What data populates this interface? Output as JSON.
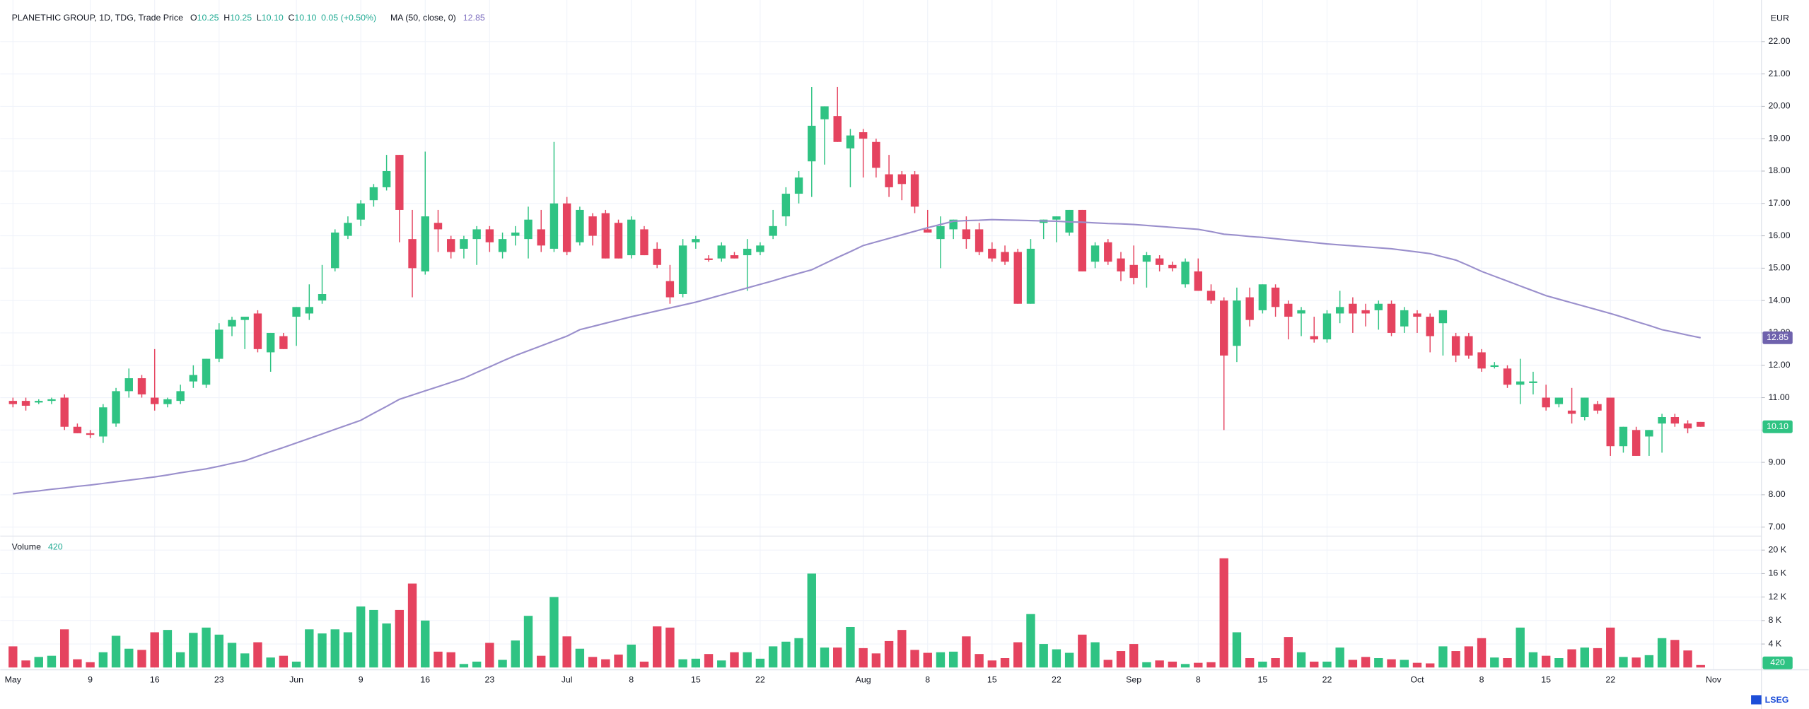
{
  "chart_data": {
    "type": "candlestick",
    "title": "PLANETHIC GROUP, 1D, TDG, Trade Price",
    "legend": {
      "items": [
        {
          "key": "O",
          "value": "10.25"
        },
        {
          "key": "H",
          "value": "10.25"
        },
        {
          "key": "L",
          "value": "10.10"
        },
        {
          "key": "C",
          "value": "10.10"
        }
      ],
      "change": "0.05 (+0.50%)"
    },
    "currency": "EUR",
    "brand": "LSEG",
    "up_color": "#2fc383",
    "down_color": "#e5435f",
    "grid": true,
    "categories": [
      "May",
      null,
      null,
      null,
      null,
      null,
      "9",
      null,
      null,
      null,
      null,
      "16",
      null,
      null,
      null,
      null,
      "23",
      null,
      null,
      null,
      null,
      null,
      "Jun",
      null,
      null,
      null,
      null,
      "9",
      null,
      null,
      null,
      null,
      "16",
      null,
      null,
      null,
      null,
      "23",
      null,
      null,
      null,
      null,
      null,
      "Jul",
      null,
      null,
      null,
      null,
      "8",
      null,
      null,
      null,
      null,
      "15",
      null,
      null,
      null,
      null,
      "22",
      null,
      null,
      null,
      null,
      null,
      null,
      null,
      "Aug",
      null,
      null,
      null,
      null,
      "8",
      null,
      null,
      null,
      null,
      "15",
      null,
      null,
      null,
      null,
      "22",
      null,
      null,
      null,
      null,
      null,
      "Sep",
      null,
      null,
      null,
      null,
      "8",
      null,
      null,
      null,
      null,
      "15",
      null,
      null,
      null,
      null,
      "22",
      null,
      null,
      null,
      null,
      null,
      null,
      "Oct",
      null,
      null,
      null,
      null,
      "8",
      null,
      null,
      null,
      null,
      "15",
      null,
      null,
      null,
      null,
      "22",
      null,
      null,
      null,
      null,
      null,
      null,
      null,
      "Nov"
    ],
    "open": [
      10.9,
      10.9,
      10.85,
      10.9,
      11.0,
      10.1,
      9.9,
      9.8,
      10.2,
      11.2,
      11.6,
      11.0,
      10.8,
      10.9,
      11.5,
      11.4,
      12.2,
      13.2,
      13.4,
      13.6,
      12.4,
      12.9,
      13.5,
      13.6,
      14.0,
      15.0,
      16.0,
      16.5,
      17.1,
      17.5,
      18.5,
      15.9,
      14.9,
      16.4,
      15.9,
      15.6,
      15.9,
      16.2,
      15.5,
      16.0,
      15.9,
      16.2,
      15.6,
      17.0,
      15.8,
      16.6,
      16.7,
      16.4,
      15.4,
      16.2,
      15.6,
      14.6,
      14.2,
      15.8,
      15.3,
      15.3,
      15.4,
      15.4,
      15.5,
      16.0,
      16.6,
      17.3,
      18.3,
      19.6,
      19.7,
      18.7,
      19.2,
      18.9,
      17.9,
      17.9,
      17.9,
      16.2,
      15.9,
      16.2,
      16.2,
      16.2,
      15.6,
      15.5,
      15.5,
      13.9,
      16.4,
      16.5,
      16.1,
      16.8,
      15.2,
      15.8,
      15.3,
      15.1,
      15.2,
      15.3,
      15.1,
      14.5,
      14.9,
      14.3,
      14.0,
      12.6,
      14.1,
      13.7,
      14.4,
      13.9,
      13.6,
      12.9,
      12.8,
      13.6,
      13.9,
      13.7,
      13.7,
      13.9,
      13.2,
      13.6,
      13.5,
      13.3,
      12.9,
      12.9,
      12.4,
      11.95,
      11.9,
      11.4,
      11.45,
      11.0,
      10.8,
      10.6,
      10.4,
      10.8,
      11.0,
      9.5,
      10.0,
      9.8,
      10.2,
      10.4,
      10.2,
      10.25,
      null
    ],
    "high": [
      11.0,
      11.0,
      10.95,
      11.0,
      11.1,
      10.2,
      10.0,
      10.8,
      11.3,
      11.9,
      11.7,
      12.5,
      11.0,
      11.4,
      12.0,
      12.2,
      13.3,
      13.5,
      13.5,
      13.7,
      13.0,
      13.0,
      13.8,
      14.5,
      15.1,
      16.2,
      16.6,
      17.1,
      17.6,
      18.5,
      18.5,
      16.8,
      18.6,
      16.8,
      16.0,
      16.0,
      16.3,
      16.3,
      16.1,
      16.3,
      16.9,
      16.8,
      18.9,
      17.2,
      16.9,
      16.7,
      16.8,
      16.5,
      16.6,
      16.3,
      15.8,
      15.1,
      15.9,
      16.0,
      15.4,
      15.8,
      15.5,
      15.9,
      15.8,
      16.8,
      17.5,
      18.0,
      20.6,
      20.0,
      20.6,
      19.3,
      19.3,
      19.0,
      18.5,
      18.0,
      18.0,
      16.8,
      16.6,
      16.5,
      16.6,
      16.4,
      15.8,
      15.7,
      15.6,
      15.9,
      16.5,
      16.6,
      16.8,
      16.8,
      15.8,
      15.9,
      15.5,
      15.7,
      15.5,
      15.4,
      15.2,
      15.3,
      15.3,
      14.5,
      14.1,
      14.4,
      14.4,
      14.5,
      14.5,
      14.0,
      13.8,
      13.5,
      13.7,
      14.3,
      14.1,
      13.9,
      14.0,
      14.0,
      13.8,
      13.7,
      13.6,
      13.7,
      13.0,
      13.0,
      12.5,
      12.1,
      12.0,
      12.2,
      11.8,
      11.4,
      11.0,
      11.3,
      11.0,
      10.9,
      11.0,
      10.1,
      10.1,
      10.0,
      10.5,
      10.5,
      10.3,
      10.25,
      null
    ],
    "low": [
      10.7,
      10.6,
      10.8,
      10.8,
      10.0,
      9.9,
      9.75,
      9.6,
      10.1,
      11.0,
      11.0,
      10.6,
      10.7,
      10.8,
      11.3,
      11.3,
      12.1,
      12.9,
      12.5,
      12.4,
      11.8,
      12.5,
      12.6,
      13.4,
      13.9,
      14.9,
      15.9,
      16.3,
      16.9,
      17.4,
      15.8,
      14.1,
      14.8,
      15.5,
      15.3,
      15.3,
      15.1,
      15.5,
      15.3,
      15.7,
      15.3,
      15.5,
      15.5,
      15.4,
      15.7,
      15.7,
      15.3,
      15.3,
      15.3,
      15.4,
      15.0,
      13.9,
      14.1,
      15.6,
      15.2,
      15.2,
      15.3,
      14.3,
      15.4,
      15.9,
      16.3,
      17.0,
      17.2,
      18.2,
      18.9,
      17.5,
      17.8,
      17.8,
      17.2,
      17.1,
      16.7,
      16.1,
      15.0,
      15.9,
      15.6,
      15.4,
      15.2,
      15.1,
      13.9,
      13.9,
      15.9,
      15.8,
      16.0,
      14.9,
      15.0,
      15.1,
      14.6,
      14.5,
      14.4,
      14.9,
      14.9,
      14.4,
      14.3,
      13.9,
      10.0,
      12.1,
      13.2,
      13.6,
      13.5,
      12.8,
      12.9,
      12.7,
      12.7,
      13.3,
      13.0,
      13.2,
      13.1,
      12.9,
      13.0,
      13.0,
      12.4,
      12.3,
      12.1,
      12.2,
      11.8,
      11.9,
      11.3,
      10.8,
      11.1,
      10.6,
      10.7,
      10.2,
      10.3,
      10.5,
      9.2,
      9.3,
      9.2,
      9.2,
      9.3,
      10.1,
      9.9,
      10.1,
      null
    ],
    "close": [
      10.8,
      10.75,
      10.9,
      10.95,
      10.1,
      9.9,
      9.85,
      10.7,
      11.2,
      11.6,
      11.1,
      10.8,
      10.95,
      11.2,
      11.7,
      12.2,
      13.1,
      13.4,
      13.5,
      12.5,
      13.0,
      12.5,
      13.8,
      13.8,
      14.2,
      16.1,
      16.4,
      17.0,
      17.5,
      18.0,
      16.8,
      15.0,
      16.6,
      16.2,
      15.5,
      15.9,
      16.2,
      15.8,
      15.9,
      16.1,
      16.5,
      15.7,
      17.0,
      15.5,
      16.8,
      16.0,
      15.3,
      15.3,
      16.5,
      15.4,
      15.1,
      14.1,
      15.7,
      15.9,
      15.25,
      15.7,
      15.3,
      15.6,
      15.7,
      16.3,
      17.3,
      17.8,
      19.4,
      20.0,
      18.9,
      19.1,
      19.0,
      18.1,
      17.5,
      17.6,
      16.9,
      16.1,
      16.3,
      16.5,
      15.9,
      15.5,
      15.3,
      15.2,
      13.9,
      15.6,
      16.5,
      16.6,
      16.8,
      14.9,
      15.7,
      15.2,
      14.9,
      14.7,
      15.4,
      15.1,
      15.0,
      15.2,
      14.3,
      14.0,
      12.3,
      14.0,
      13.4,
      14.5,
      13.8,
      13.5,
      13.7,
      12.8,
      13.6,
      13.8,
      13.6,
      13.6,
      13.9,
      13.0,
      13.7,
      13.5,
      12.9,
      13.7,
      12.3,
      12.3,
      11.9,
      12.0,
      11.4,
      11.5,
      11.5,
      10.7,
      11.0,
      10.5,
      11.0,
      10.6,
      9.5,
      10.1,
      9.2,
      10.0,
      10.4,
      10.2,
      10.05,
      10.1,
      null
    ],
    "ylim": [
      6.83,
      23.0
    ],
    "yticks": [
      {
        "value": 7,
        "label": "7.00"
      },
      {
        "value": 8,
        "label": "8.00"
      },
      {
        "value": 9,
        "label": "9.00"
      },
      {
        "value": 10,
        "label": "10.00"
      },
      {
        "value": 11,
        "label": "11.00"
      },
      {
        "value": 12,
        "label": "12.00"
      },
      {
        "value": 13,
        "label": "13.00"
      },
      {
        "value": 14,
        "label": "14.00"
      },
      {
        "value": 15,
        "label": "15.00"
      },
      {
        "value": 16,
        "label": "16.00"
      },
      {
        "value": 17,
        "label": "17.00"
      },
      {
        "value": 18,
        "label": "18.00"
      },
      {
        "value": 19,
        "label": "19.00"
      },
      {
        "value": 20,
        "label": "20.00"
      },
      {
        "value": 21,
        "label": "21.00"
      },
      {
        "value": 22,
        "label": "22.00"
      }
    ],
    "ma": {
      "name": "MA (50, close, 0)",
      "value_label": "12.85",
      "color": "#9a8fcc",
      "values": [
        8.03,
        8.08,
        8.12,
        8.17,
        8.21,
        8.26,
        8.3,
        8.35,
        8.4,
        8.45,
        8.5,
        8.55,
        8.61,
        8.68,
        8.74,
        8.8,
        8.88,
        8.97,
        9.05,
        9.19,
        9.33,
        9.46,
        9.6,
        9.74,
        9.88,
        10.02,
        10.16,
        10.3,
        10.52,
        10.73,
        10.95,
        11.08,
        11.21,
        11.34,
        11.47,
        11.6,
        11.78,
        11.95,
        12.13,
        12.3,
        12.45,
        12.6,
        12.75,
        12.9,
        13.1,
        13.2,
        13.3,
        13.4,
        13.5,
        13.59,
        13.68,
        13.77,
        13.86,
        13.95,
        14.06,
        14.17,
        14.28,
        14.39,
        14.5,
        14.61,
        14.73,
        14.84,
        14.95,
        15.14,
        15.33,
        15.51,
        15.7,
        15.81,
        15.92,
        16.03,
        16.14,
        16.25,
        16.35,
        16.45,
        16.47,
        16.48,
        16.5,
        16.49,
        16.48,
        16.47,
        16.46,
        16.45,
        16.43,
        16.42,
        16.4,
        16.38,
        16.37,
        16.35,
        16.32,
        16.29,
        16.26,
        16.23,
        16.2,
        16.13,
        16.05,
        16.02,
        15.98,
        15.95,
        15.91,
        15.87,
        15.83,
        15.79,
        15.75,
        15.72,
        15.69,
        15.66,
        15.63,
        15.6,
        15.55,
        15.5,
        15.45,
        15.35,
        15.25,
        15.08,
        14.9,
        14.75,
        14.6,
        14.45,
        14.3,
        14.15,
        14.04,
        13.93,
        13.82,
        13.71,
        13.6,
        13.48,
        13.35,
        13.23,
        13.1,
        13.02,
        12.93,
        12.85,
        null
      ]
    },
    "volume": {
      "name": "Volume",
      "values": [
        3600,
        1200,
        1800,
        2000,
        6500,
        1400,
        900,
        2600,
        5400,
        3200,
        3000,
        6000,
        6400,
        2600,
        5900,
        6800,
        5600,
        4200,
        2400,
        4300,
        1700,
        2000,
        1000,
        6500,
        5800,
        6500,
        6000,
        10400,
        9800,
        7500,
        9800,
        14300,
        8000,
        2700,
        2600,
        600,
        1000,
        4200,
        1300,
        4600,
        8800,
        2000,
        12000,
        5300,
        3200,
        1800,
        1400,
        2200,
        3900,
        1000,
        7000,
        6800,
        1400,
        1500,
        2300,
        1200,
        2600,
        2600,
        1500,
        3600,
        4400,
        5000,
        16000,
        3400,
        3400,
        6900,
        3300,
        2400,
        4500,
        6400,
        3000,
        2500,
        2600,
        2700,
        5300,
        2300,
        1200,
        1600,
        4300,
        9100,
        4000,
        3100,
        2500,
        5600,
        4300,
        1300,
        2800,
        4000,
        900,
        1200,
        1000,
        600,
        800,
        900,
        18600,
        6000,
        1600,
        1000,
        1600,
        5200,
        2600,
        1000,
        1000,
        3400,
        1300,
        1800,
        1600,
        1400,
        1300,
        800,
        700,
        3600,
        2800,
        3600,
        5000,
        1700,
        1600,
        6800,
        2600,
        2000,
        1600,
        3100,
        3400,
        3300,
        6800,
        1800,
        1700,
        2100,
        5000,
        4700,
        2900,
        420,
        null
      ],
      "ylim": [
        0,
        21800
      ],
      "yticks": [
        {
          "value": 4000,
          "label": "4 K"
        },
        {
          "value": 8000,
          "label": "8 K"
        },
        {
          "value": 12000,
          "label": "12 K"
        },
        {
          "value": 16000,
          "label": "16 K"
        },
        {
          "value": 20000,
          "label": "20 K"
        }
      ]
    }
  }
}
